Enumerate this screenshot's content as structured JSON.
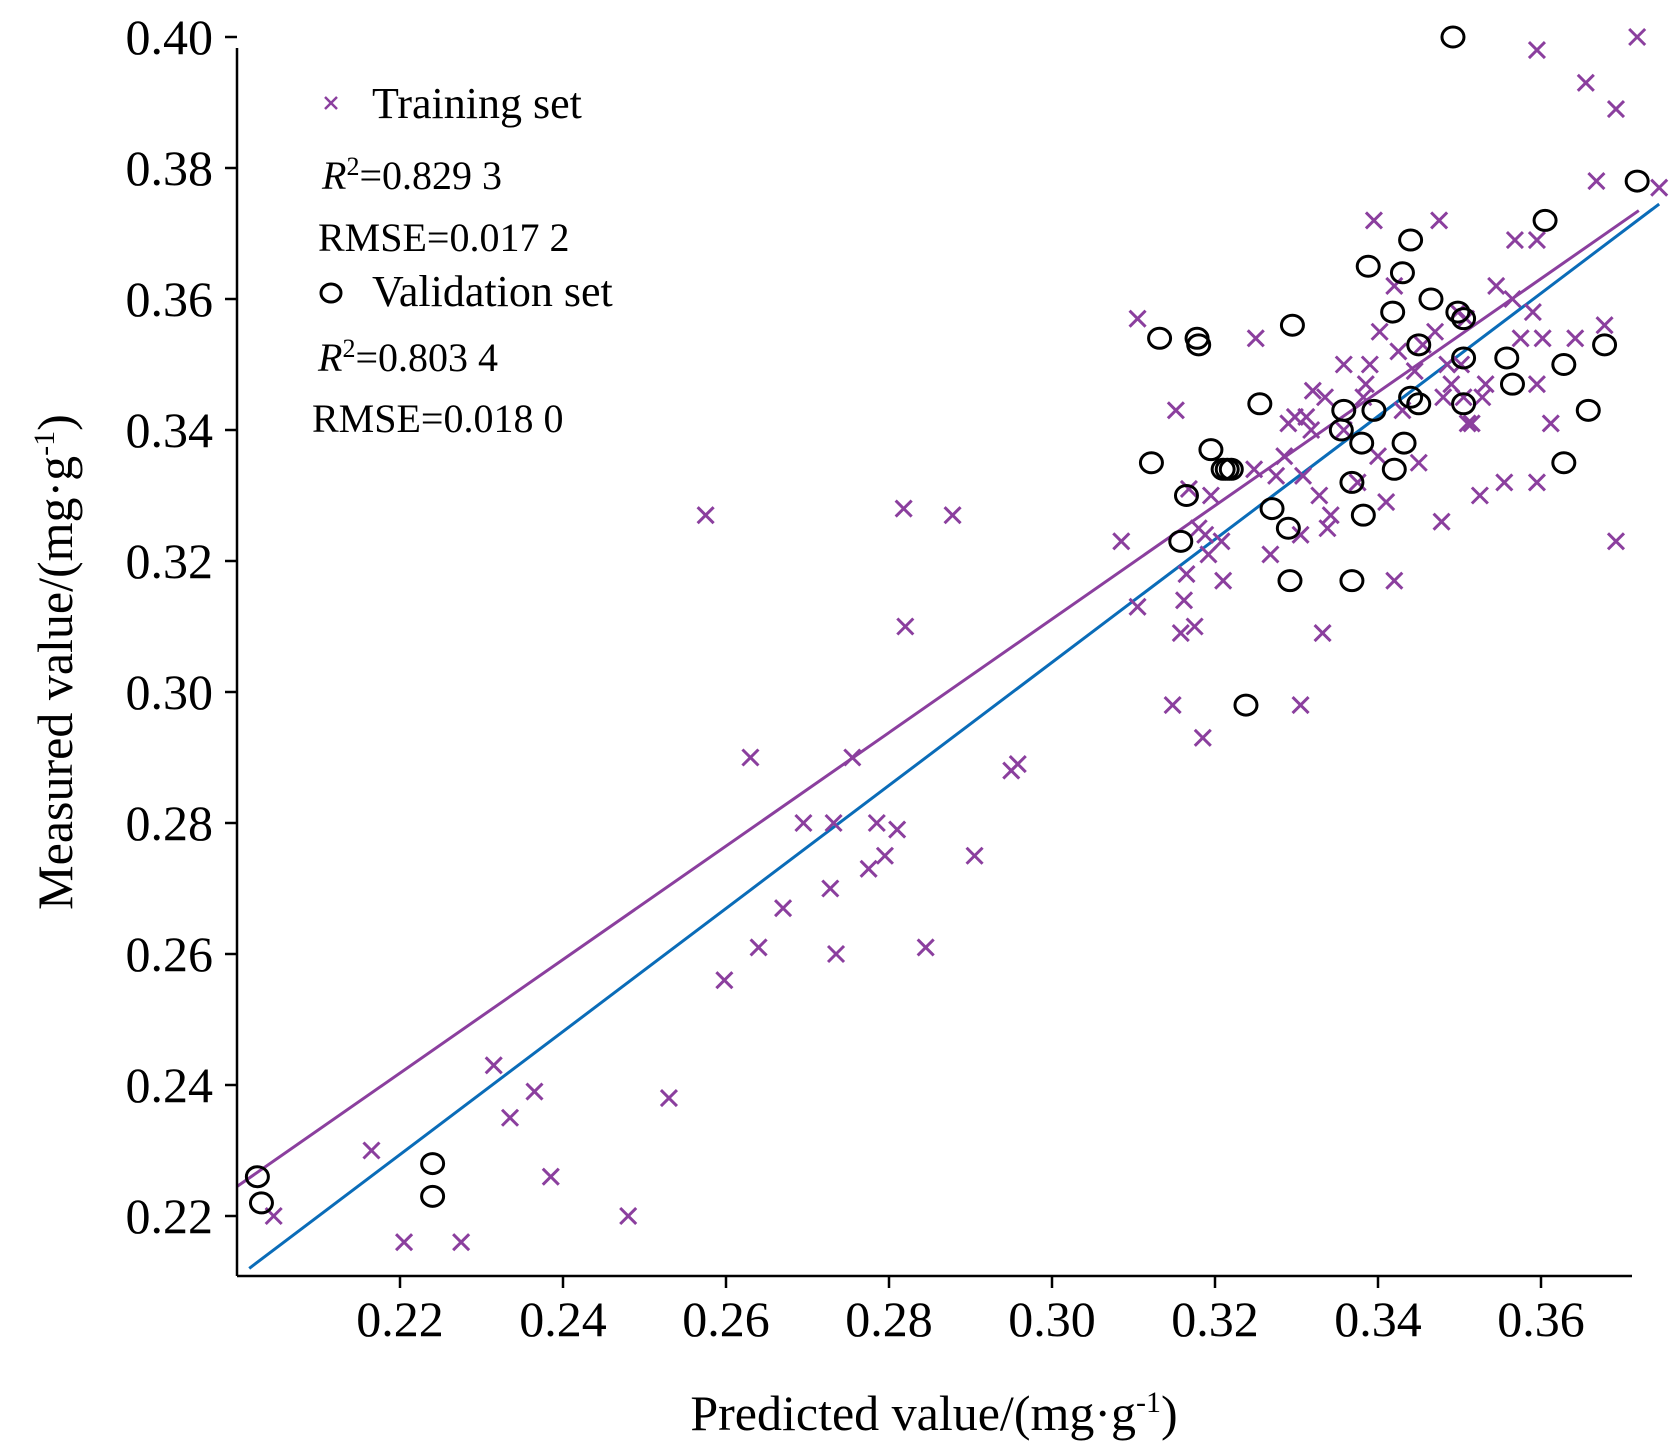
{
  "chart_data": {
    "type": "scatter",
    "xlabel": "Predicted value/(mg·g",
    "xlabel_sup": "-1",
    "xlabel_end": ")",
    "ylabel": "Measured value/(mg·g",
    "ylabel_sup": "-1",
    "ylabel_end": ")",
    "xlim": [
      0.2,
      0.375
    ],
    "ylim": [
      0.212,
      0.4
    ],
    "x_ticks": [
      0.22,
      0.24,
      0.26,
      0.28,
      0.3,
      0.32,
      0.34,
      0.36
    ],
    "x_tick_labels": [
      "0.22",
      "0.24",
      "0.26",
      "0.28",
      "0.30",
      "0.32",
      "0.34",
      "0.36"
    ],
    "y_ticks": [
      0.22,
      0.24,
      0.26,
      0.28,
      0.3,
      0.32,
      0.34,
      0.36,
      0.38,
      0.4
    ],
    "y_tick_labels": [
      "0.22",
      "0.24",
      "0.26",
      "0.28",
      "0.30",
      "0.32",
      "0.34",
      "0.36",
      "0.38",
      "0.40"
    ],
    "grid": false,
    "legend_position": "top-left",
    "colors": {
      "training": "#8B3F9E",
      "validation": "#000000",
      "training_fit": "#8B3F9E",
      "validation_fit": "#0A6CB8"
    },
    "series": [
      {
        "name": "Training set",
        "marker": "x",
        "stats": {
          "r2_symbol": "R",
          "r2_sup": "2",
          "r2_value": "=0.829 3",
          "rmse": "RMSE=0.017 2"
        },
        "fit_line": {
          "x": [
            0.2,
            0.372
          ],
          "y": [
            0.2245,
            0.3735
          ]
        },
        "points": [
          [
            0.2045,
            0.22
          ],
          [
            0.2165,
            0.23
          ],
          [
            0.2205,
            0.216
          ],
          [
            0.2275,
            0.216
          ],
          [
            0.2315,
            0.243
          ],
          [
            0.2335,
            0.235
          ],
          [
            0.2365,
            0.239
          ],
          [
            0.2385,
            0.226
          ],
          [
            0.248,
            0.22
          ],
          [
            0.253,
            0.238
          ],
          [
            0.2575,
            0.327
          ],
          [
            0.2598,
            0.256
          ],
          [
            0.263,
            0.29
          ],
          [
            0.264,
            0.261
          ],
          [
            0.267,
            0.267
          ],
          [
            0.2695,
            0.28
          ],
          [
            0.2728,
            0.27
          ],
          [
            0.2732,
            0.28
          ],
          [
            0.2735,
            0.26
          ],
          [
            0.2755,
            0.29
          ],
          [
            0.2775,
            0.273
          ],
          [
            0.2785,
            0.28
          ],
          [
            0.2795,
            0.275
          ],
          [
            0.281,
            0.279
          ],
          [
            0.2818,
            0.328
          ],
          [
            0.282,
            0.31
          ],
          [
            0.2845,
            0.261
          ],
          [
            0.2878,
            0.327
          ],
          [
            0.2905,
            0.275
          ],
          [
            0.295,
            0.288
          ],
          [
            0.2958,
            0.289
          ],
          [
            0.3085,
            0.323
          ],
          [
            0.3105,
            0.313
          ],
          [
            0.3105,
            0.357
          ],
          [
            0.3148,
            0.298
          ],
          [
            0.3152,
            0.343
          ],
          [
            0.3158,
            0.309
          ],
          [
            0.3162,
            0.314
          ],
          [
            0.3165,
            0.318
          ],
          [
            0.3168,
            0.331
          ],
          [
            0.3175,
            0.31
          ],
          [
            0.318,
            0.325
          ],
          [
            0.3185,
            0.293
          ],
          [
            0.3188,
            0.324
          ],
          [
            0.3192,
            0.321
          ],
          [
            0.3195,
            0.33
          ],
          [
            0.3208,
            0.323
          ],
          [
            0.321,
            0.317
          ],
          [
            0.3248,
            0.334
          ],
          [
            0.325,
            0.354
          ],
          [
            0.3268,
            0.321
          ],
          [
            0.3275,
            0.333
          ],
          [
            0.3285,
            0.336
          ],
          [
            0.329,
            0.341
          ],
          [
            0.3298,
            0.342
          ],
          [
            0.3305,
            0.298
          ],
          [
            0.3305,
            0.324
          ],
          [
            0.3308,
            0.333
          ],
          [
            0.3312,
            0.342
          ],
          [
            0.3318,
            0.34
          ],
          [
            0.332,
            0.346
          ],
          [
            0.3328,
            0.33
          ],
          [
            0.3332,
            0.309
          ],
          [
            0.3335,
            0.345
          ],
          [
            0.3338,
            0.325
          ],
          [
            0.3342,
            0.327
          ],
          [
            0.3358,
            0.34
          ],
          [
            0.3358,
            0.35
          ],
          [
            0.3375,
            0.332
          ],
          [
            0.3382,
            0.345
          ],
          [
            0.3385,
            0.347
          ],
          [
            0.339,
            0.35
          ],
          [
            0.3395,
            0.372
          ],
          [
            0.34,
            0.336
          ],
          [
            0.3402,
            0.355
          ],
          [
            0.341,
            0.329
          ],
          [
            0.342,
            0.317
          ],
          [
            0.342,
            0.362
          ],
          [
            0.3425,
            0.352
          ],
          [
            0.343,
            0.343
          ],
          [
            0.3445,
            0.349
          ],
          [
            0.345,
            0.335
          ],
          [
            0.3455,
            0.353
          ],
          [
            0.347,
            0.355
          ],
          [
            0.3475,
            0.372
          ],
          [
            0.3478,
            0.326
          ],
          [
            0.348,
            0.345
          ],
          [
            0.3485,
            0.35
          ],
          [
            0.349,
            0.347
          ],
          [
            0.3498,
            0.358
          ],
          [
            0.3502,
            0.35
          ],
          [
            0.3505,
            0.345
          ],
          [
            0.3508,
            0.357
          ],
          [
            0.351,
            0.341
          ],
          [
            0.3515,
            0.341
          ],
          [
            0.3525,
            0.33
          ],
          [
            0.3528,
            0.345
          ],
          [
            0.3532,
            0.347
          ],
          [
            0.3545,
            0.362
          ],
          [
            0.3555,
            0.332
          ],
          [
            0.3565,
            0.36
          ],
          [
            0.3568,
            0.369
          ],
          [
            0.3575,
            0.354
          ],
          [
            0.359,
            0.358
          ],
          [
            0.3595,
            0.332
          ],
          [
            0.3595,
            0.347
          ],
          [
            0.3595,
            0.369
          ],
          [
            0.3595,
            0.398
          ],
          [
            0.3602,
            0.354
          ],
          [
            0.3612,
            0.341
          ],
          [
            0.3642,
            0.354
          ],
          [
            0.3655,
            0.393
          ],
          [
            0.3668,
            0.378
          ],
          [
            0.3678,
            0.356
          ],
          [
            0.3692,
            0.323
          ],
          [
            0.3692,
            0.389
          ],
          [
            0.3718,
            0.4
          ],
          [
            0.3745,
            0.377
          ]
        ]
      },
      {
        "name": "Validation set",
        "marker": "o",
        "stats": {
          "r2_symbol": "R",
          "r2_sup": "2",
          "r2_value": "=0.803 4",
          "rmse": "RMSE=0.018 0"
        },
        "fit_line": {
          "x": [
            0.2015,
            0.3745
          ],
          "y": [
            0.212,
            0.3745
          ]
        },
        "points": [
          [
            0.2025,
            0.226
          ],
          [
            0.203,
            0.222
          ],
          [
            0.224,
            0.228
          ],
          [
            0.224,
            0.223
          ],
          [
            0.3122,
            0.335
          ],
          [
            0.3132,
            0.354
          ],
          [
            0.3158,
            0.323
          ],
          [
            0.3165,
            0.33
          ],
          [
            0.3178,
            0.354
          ],
          [
            0.318,
            0.353
          ],
          [
            0.3195,
            0.337
          ],
          [
            0.321,
            0.334
          ],
          [
            0.3215,
            0.334
          ],
          [
            0.322,
            0.334
          ],
          [
            0.3238,
            0.298
          ],
          [
            0.3255,
            0.344
          ],
          [
            0.327,
            0.328
          ],
          [
            0.329,
            0.325
          ],
          [
            0.3292,
            0.317
          ],
          [
            0.3295,
            0.356
          ],
          [
            0.3355,
            0.34
          ],
          [
            0.3358,
            0.343
          ],
          [
            0.3368,
            0.332
          ],
          [
            0.3368,
            0.317
          ],
          [
            0.338,
            0.338
          ],
          [
            0.3382,
            0.327
          ],
          [
            0.3388,
            0.365
          ],
          [
            0.3395,
            0.343
          ],
          [
            0.3418,
            0.358
          ],
          [
            0.342,
            0.334
          ],
          [
            0.343,
            0.364
          ],
          [
            0.3432,
            0.338
          ],
          [
            0.344,
            0.369
          ],
          [
            0.344,
            0.345
          ],
          [
            0.345,
            0.353
          ],
          [
            0.345,
            0.344
          ],
          [
            0.3465,
            0.36
          ],
          [
            0.3492,
            0.4
          ],
          [
            0.3498,
            0.358
          ],
          [
            0.3505,
            0.357
          ],
          [
            0.3505,
            0.351
          ],
          [
            0.3505,
            0.344
          ],
          [
            0.3558,
            0.351
          ],
          [
            0.3565,
            0.347
          ],
          [
            0.3605,
            0.372
          ],
          [
            0.3628,
            0.335
          ],
          [
            0.3628,
            0.35
          ],
          [
            0.3658,
            0.343
          ],
          [
            0.3678,
            0.353
          ],
          [
            0.3718,
            0.378
          ]
        ]
      }
    ]
  }
}
